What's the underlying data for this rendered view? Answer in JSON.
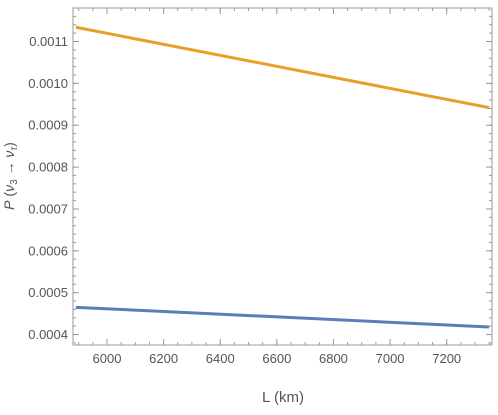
{
  "chart_data": {
    "type": "line",
    "xlabel": "L (km)",
    "ylabel_parts": {
      "p": "P",
      "open": " (",
      "nu1": "ν",
      "sub1": "3",
      "arrow": " → ",
      "nu2": "ν",
      "sub2": "τ",
      "close": ")"
    },
    "xlim": [
      5880,
      7360
    ],
    "ylim": [
      0.000375,
      0.00118
    ],
    "x_ticks": [
      6000,
      6200,
      6400,
      6600,
      6800,
      7000,
      7200
    ],
    "y_ticks": [
      0.0004,
      0.0005,
      0.0006,
      0.0007,
      0.0008,
      0.0009,
      0.001,
      0.0011
    ],
    "x_minor_step": 50,
    "y_minor_step": 2e-05,
    "series": [
      {
        "color": "#e5a02a",
        "x": [
          5890,
          7350
        ],
        "values": [
          0.001134,
          0.000942
        ]
      },
      {
        "color": "#5a7fb5",
        "x": [
          5890,
          7350
        ],
        "values": [
          0.000465,
          0.000418
        ]
      }
    ]
  }
}
